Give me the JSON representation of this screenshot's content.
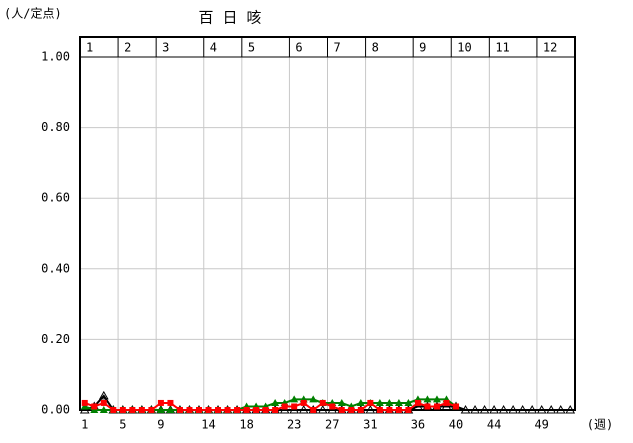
{
  "chart_data": {
    "type": "line",
    "title": "百 日 咳",
    "y_axis_label": "(人/定点)",
    "x_axis_label": "(週)",
    "months": [
      "1",
      "2",
      "3",
      "4",
      "5",
      "6",
      "7",
      "8",
      "9",
      "10",
      "11",
      "12"
    ],
    "categories": [
      "1",
      null,
      null,
      null,
      "5",
      null,
      null,
      null,
      "9",
      null,
      null,
      null,
      null,
      "14",
      null,
      null,
      null,
      "18",
      null,
      null,
      null,
      null,
      "23",
      null,
      null,
      null,
      "27",
      null,
      null,
      null,
      "31",
      null,
      null,
      null,
      null,
      "36",
      null,
      null,
      null,
      "40",
      null,
      null,
      null,
      "44",
      null,
      null,
      null,
      null,
      "49",
      null,
      null,
      null
    ],
    "ylim": [
      0,
      1
    ],
    "yticks": [
      {
        "value": 0,
        "label": "0.00"
      },
      {
        "value": 0.2,
        "label": "0.20"
      },
      {
        "value": 0.4,
        "label": "0.40"
      },
      {
        "value": 0.6,
        "label": "0.60"
      },
      {
        "value": 0.8,
        "label": "0.80"
      },
      {
        "value": 1,
        "label": "1.00"
      }
    ],
    "grid": true,
    "series": [
      {
        "color": "#000000",
        "marker": "open-triangle",
        "values": [
          0,
          0.01,
          0.04,
          0,
          0,
          0,
          0,
          0,
          0,
          0,
          0,
          0,
          0,
          0,
          0,
          0,
          0,
          0,
          0,
          0,
          0,
          0,
          0,
          0,
          0,
          0,
          0,
          0,
          0,
          0,
          0,
          0,
          0,
          0,
          0,
          0.01,
          0.01,
          0.01,
          0.01,
          0.01,
          0,
          0,
          0,
          0,
          0,
          0,
          0,
          0,
          0,
          0,
          0,
          0
        ]
      },
      {
        "color": "#008000",
        "marker": "triangle",
        "values": [
          0.01,
          0,
          0,
          0,
          0,
          0,
          0,
          0,
          0,
          0,
          0,
          0,
          0,
          0,
          0,
          0,
          0,
          0.01,
          0.01,
          0.01,
          0.02,
          0.02,
          0.03,
          0.03,
          0.03,
          0.02,
          0.02,
          0.02,
          0.01,
          0.02,
          0.02,
          0.02,
          0.02,
          0.02,
          0.02,
          0.03,
          0.03,
          0.03,
          0.03,
          0.01,
          null,
          null,
          null,
          null,
          null,
          null,
          null,
          null,
          null,
          null,
          null,
          null
        ]
      },
      {
        "color": "#ff0000",
        "marker": "square",
        "values": [
          0.02,
          0.01,
          0.02,
          0,
          0,
          0,
          0,
          0,
          0.02,
          0.02,
          0,
          0,
          0,
          0,
          0,
          0,
          0,
          0,
          0,
          0,
          0,
          0.01,
          0.01,
          0.02,
          0,
          0.02,
          0.01,
          0,
          0,
          0,
          0.02,
          0,
          0,
          0,
          0,
          0.02,
          0.01,
          0.01,
          0.02,
          0.01,
          null,
          null,
          null,
          null,
          null,
          null,
          null,
          null,
          null,
          null,
          null,
          null
        ]
      }
    ]
  }
}
